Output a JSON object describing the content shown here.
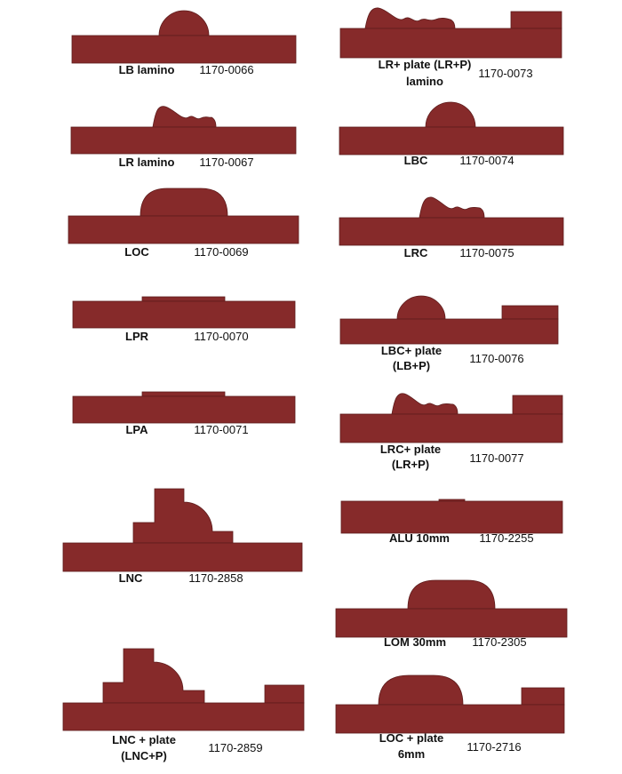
{
  "fill_color": "#862a2a",
  "profiles": [
    {
      "name": "LB lamino",
      "code": "1170-0066"
    },
    {
      "name": "LR lamino",
      "code": "1170-0067"
    },
    {
      "name": "LOC",
      "code": "1170-0069"
    },
    {
      "name": "LPR",
      "code": "1170-0070"
    },
    {
      "name": "LPA",
      "code": "1170-0071"
    },
    {
      "name": "LNC",
      "code": "1170-2858"
    },
    {
      "name_line1": "LNC + plate",
      "name_line2": "(LNC+P)",
      "code": "1170-2859"
    },
    {
      "name_line1": "LR+ plate (LR+P)",
      "name_line2": "lamino",
      "code": "1170-0073"
    },
    {
      "name": "LBC",
      "code": "1170-0074"
    },
    {
      "name": "LRC",
      "code": "1170-0075"
    },
    {
      "name_line1": "LBC+ plate",
      "name_line2": "(LB+P)",
      "code": "1170-0076"
    },
    {
      "name_line1": "LRC+ plate",
      "name_line2": "(LR+P)",
      "code": "1170-0077"
    },
    {
      "name": "ALU 10mm",
      "code": "1170-2255"
    },
    {
      "name": "LOM 30mm",
      "code": "1170-2305"
    },
    {
      "name_line1": "LOC + plate",
      "name_line2": "6mm",
      "code": "1170-2716"
    }
  ]
}
